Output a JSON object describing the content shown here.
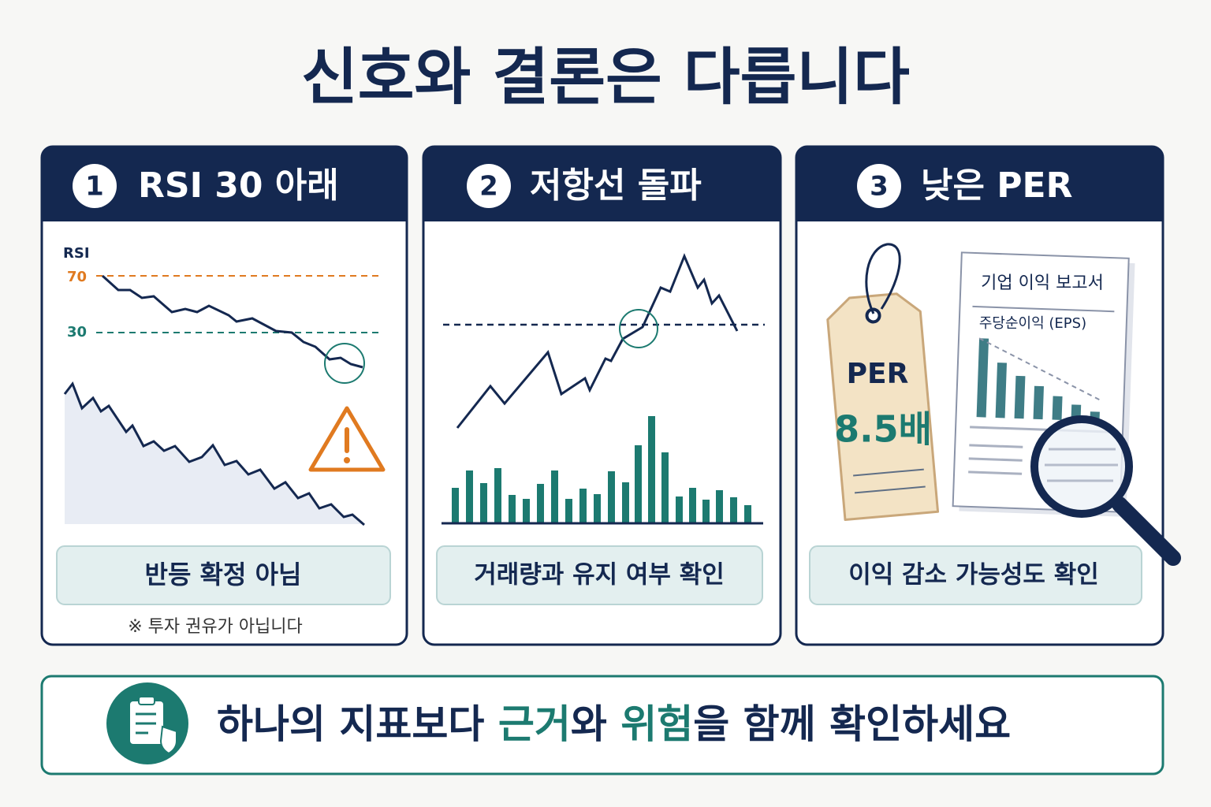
{
  "title": "신호와 결론은 다릅니다",
  "cards": [
    {
      "number": "1",
      "title": "RSI 30 아래",
      "axis_label": "RSI",
      "levels": [
        "70",
        "30"
      ],
      "note": "반등 확정 아님",
      "footnote": "※ 투자 권유가 아닙니다"
    },
    {
      "number": "2",
      "title": "저항선 돌파",
      "note": "거래량과 유지 여부 확인"
    },
    {
      "number": "3",
      "title": "낮은 PER",
      "tag_label": "PER",
      "tag_value": "8.5배",
      "report_title": "기업 이익 보고서",
      "report_subtitle": "주당순이익 (EPS)",
      "note": "이익 감소 가능성도 확인"
    }
  ],
  "footer": {
    "before": "하나의 지표보다 ",
    "highlight_1": "근거",
    "middle": "와 ",
    "highlight_2": "위험",
    "after": "을 함께 확인하세요"
  }
}
